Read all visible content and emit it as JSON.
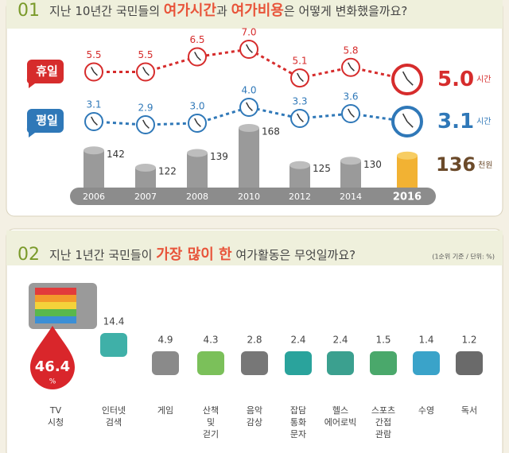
{
  "chart_data": [
    {
      "type": "line",
      "number": "01",
      "title_parts": [
        "지난 10년간 국민들의 ",
        "여가시간",
        "과 ",
        "여가비용",
        "은 어떻게 변화했을까요?"
      ],
      "categories": [
        "2006",
        "2007",
        "2008",
        "2010",
        "2012",
        "2014",
        "2016"
      ],
      "unit": "시간",
      "series": [
        {
          "name": "휴일",
          "color": "#d62c2c",
          "values": [
            5.5,
            5.5,
            6.5,
            7.0,
            5.1,
            5.8,
            5.0
          ],
          "value_labels": [
            "5.5",
            "5.5",
            "6.5",
            "7.0",
            "5.1",
            "5.8",
            "5.0"
          ]
        },
        {
          "name": "평일",
          "color": "#2f78b8",
          "values": [
            3.1,
            2.9,
            3.0,
            4.0,
            3.3,
            3.6,
            3.1
          ],
          "value_labels": [
            "3.1",
            "2.9",
            "3.0",
            "4.0",
            "3.3",
            "3.6",
            "3.1"
          ]
        }
      ]
    },
    {
      "type": "bar",
      "categories": [
        "2006",
        "2007",
        "2008",
        "2010",
        "2012",
        "2014",
        "2016"
      ],
      "values": [
        142,
        122,
        139,
        168,
        125,
        130,
        136
      ],
      "unit": "천원",
      "color": "#9a9a9a",
      "highlight_color": "#f2b233"
    },
    {
      "type": "icon-list",
      "number": "02",
      "title_parts": [
        "지난 1년간 국민들이 ",
        "가장 많이 한",
        " 여가활동은 무엇일까요?"
      ],
      "note": "(1순위 기준 / 단위: %)",
      "unit": "%",
      "categories": [
        [
          "TV",
          "시청"
        ],
        [
          "인터넷",
          "검색"
        ],
        [
          "게임"
        ],
        [
          "산책",
          "및",
          "걷기"
        ],
        [
          "음악",
          "감상"
        ],
        [
          "잡담",
          "통화",
          "문자"
        ],
        [
          "헬스",
          "에어로빅"
        ],
        [
          "스포츠",
          "간접",
          "관람"
        ],
        [
          "수영"
        ],
        [
          "독서"
        ]
      ],
      "values": [
        46.4,
        14.4,
        4.9,
        4.3,
        2.8,
        2.4,
        2.4,
        1.5,
        1.4,
        1.2
      ]
    }
  ]
}
